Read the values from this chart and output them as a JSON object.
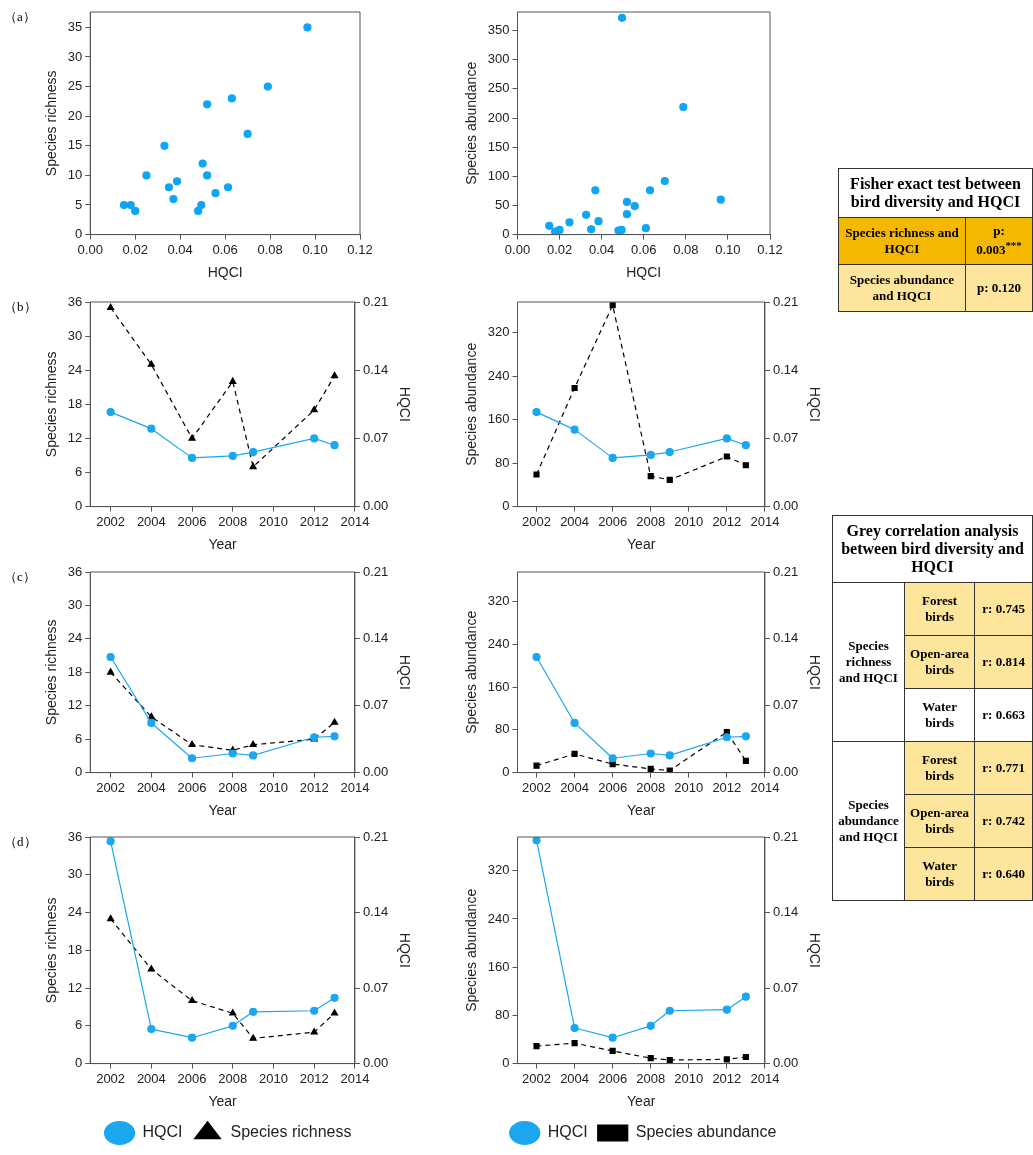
{
  "chart_data": [
    {
      "type": "scatter",
      "xlabel": "HQCI",
      "ylabel": "Species richness",
      "annotations": [
        "（a）"
      ],
      "xlim": [
        0,
        0.12
      ],
      "ylim": [
        0,
        37.6
      ],
      "xticks": [
        {
          "value": 0,
          "label": "0.00"
        },
        {
          "value": 0.02,
          "label": "0.02"
        },
        {
          "value": 0.04,
          "label": "0.04"
        },
        {
          "value": 0.06,
          "label": "0.06"
        },
        {
          "value": 0.08,
          "label": "0.08"
        },
        {
          "value": 0.1,
          "label": "0.10"
        },
        {
          "value": 0.12,
          "label": "0.12"
        }
      ],
      "yticks": [
        0,
        5,
        10,
        15,
        20,
        25,
        30,
        35
      ],
      "marker": "circle",
      "series": [
        {
          "color": "#0ea5f5",
          "x": [
            0.015,
            0.018,
            0.02,
            0.025,
            0.033,
            0.035,
            0.037,
            0.0386,
            0.048,
            0.0494,
            0.05,
            0.052,
            0.052,
            0.0557,
            0.0613,
            0.063,
            0.07,
            0.079,
            0.0966
          ],
          "values": [
            5,
            5,
            4,
            10,
            15,
            8,
            6,
            9,
            4,
            5,
            12,
            22,
            10,
            7,
            8,
            23,
            17,
            25,
            35
          ]
        }
      ]
    },
    {
      "type": "scatter",
      "xlabel": "HQCI",
      "ylabel": "Species abundance",
      "xlim": [
        0,
        0.12
      ],
      "ylim": [
        0,
        382
      ],
      "xticks": [
        {
          "value": 0,
          "label": "0.00"
        },
        {
          "value": 0.02,
          "label": "0.02"
        },
        {
          "value": 0.04,
          "label": "0.04"
        },
        {
          "value": 0.06,
          "label": "0.06"
        },
        {
          "value": 0.08,
          "label": "0.08"
        },
        {
          "value": 0.1,
          "label": "0.10"
        },
        {
          "value": 0.12,
          "label": "0.12"
        }
      ],
      "yticks": [
        0,
        50,
        100,
        150,
        200,
        250,
        300,
        350
      ],
      "marker": "circle",
      "series": [
        {
          "color": "#0ea5f5",
          "x": [
            0.0151,
            0.0179,
            0.02,
            0.0247,
            0.0326,
            0.035,
            0.037,
            0.0385,
            0.048,
            0.0495,
            0.0497,
            0.052,
            0.052,
            0.0557,
            0.061,
            0.063,
            0.07,
            0.0788,
            0.0966
          ],
          "values": [
            15,
            5,
            8,
            21,
            34,
            9,
            76,
            23,
            7,
            8,
            372,
            56,
            35,
            49,
            11,
            76,
            92,
            219,
            60
          ]
        }
      ]
    },
    {
      "type": "other",
      "title": "Fisher exact test between bird diversity and HQCI",
      "annotations": [
        "Species richness and HQCI",
        "p: 0.003$^{***}$",
        "Species abundance and HQCI",
        "p: 0.120"
      ]
    },
    {
      "type": "line",
      "xlabel": "Year",
      "ylabel": "Species richness",
      "y2label": "HQCI",
      "annotations": [
        "（b）"
      ],
      "x": [
        2002,
        2004,
        2006,
        2008,
        2009,
        2012,
        2013
      ],
      "xlim": [
        2001,
        2014
      ],
      "xticks": [
        2002,
        2004,
        2006,
        2008,
        2010,
        2012,
        2014
      ],
      "ylim": [
        0,
        36
      ],
      "yticks": [
        0,
        6,
        12,
        18,
        24,
        30,
        36
      ],
      "y2lim": [
        0,
        0.21
      ],
      "y2ticks": [
        {
          "value": 0,
          "label": "0.00"
        },
        {
          "value": 0.07,
          "label": "0.07"
        },
        {
          "value": 0.14,
          "label": "0.14"
        },
        {
          "value": 0.21,
          "label": "0.21"
        }
      ],
      "series": [
        {
          "axis": "y2",
          "color": "#1aa7f0",
          "marker": "circle",
          "line_style": "solid",
          "values": [
            0.097,
            0.08,
            0.05,
            0.052,
            0.056,
            0.07,
            0.063
          ]
        },
        {
          "axis": "y",
          "color": "#000000",
          "marker": "triangle",
          "line_style": "dashed",
          "values": [
            35,
            25,
            12,
            22,
            7,
            17,
            23
          ]
        }
      ]
    },
    {
      "type": "line",
      "xlabel": "Year",
      "ylabel": "Species abundance",
      "y2label": "HQCI",
      "x": [
        2002,
        2004,
        2006,
        2008,
        2009,
        2012,
        2013
      ],
      "xlim": [
        2001,
        2014
      ],
      "xticks": [
        2002,
        2004,
        2006,
        2008,
        2010,
        2012,
        2014
      ],
      "ylim": [
        0,
        376
      ],
      "yticks": [
        0,
        80,
        160,
        240,
        320
      ],
      "y2lim": [
        0,
        0.21
      ],
      "y2ticks": [
        {
          "value": 0,
          "label": "0.00"
        },
        {
          "value": 0.07,
          "label": "0.07"
        },
        {
          "value": 0.14,
          "label": "0.14"
        },
        {
          "value": 0.21,
          "label": "0.21"
        }
      ],
      "series": [
        {
          "axis": "y2",
          "color": "#1aa7f0",
          "marker": "circle",
          "line_style": "solid",
          "values": [
            0.097,
            0.079,
            0.05,
            0.053,
            0.056,
            0.07,
            0.063
          ]
        },
        {
          "axis": "y",
          "color": "#000000",
          "marker": "square",
          "line_style": "dashed",
          "values": [
            59,
            218,
            370,
            56,
            49,
            92,
            76
          ]
        }
      ]
    },
    {
      "type": "other",
      "title": "Grey correlation analysis between bird diversity and HQCI",
      "annotations": [
        "Species richness and HQCI",
        "Forest birds",
        "r: 0.745",
        "Open-area birds",
        "r: 0.814",
        "Water birds",
        "r: 0.663",
        "Species abundance and HQCI",
        "Forest birds",
        "r: 0.771",
        "Open-area birds",
        "r: 0.742",
        "Water birds",
        "r: 0.640"
      ]
    },
    {
      "type": "line",
      "xlabel": "Year",
      "ylabel": "Species richness",
      "y2label": "HQCI",
      "annotations": [
        "（c）"
      ],
      "x": [
        2002,
        2004,
        2006,
        2008,
        2009,
        2012,
        2013
      ],
      "xlim": [
        2001,
        2014
      ],
      "xticks": [
        2002,
        2004,
        2006,
        2008,
        2010,
        2012,
        2014
      ],
      "ylim": [
        0,
        36
      ],
      "yticks": [
        0,
        6,
        12,
        18,
        24,
        30,
        36
      ],
      "y2lim": [
        0,
        0.21
      ],
      "y2ticks": [
        {
          "value": 0,
          "label": "0.00"
        },
        {
          "value": 0.07,
          "label": "0.07"
        },
        {
          "value": 0.14,
          "label": "0.14"
        },
        {
          "value": 0.21,
          "label": "0.21"
        }
      ],
      "series": [
        {
          "axis": "y2",
          "color": "#1aa7f0",
          "marker": "circle",
          "line_style": "solid",
          "values": [
            0.121,
            0.052,
            0.015,
            0.02,
            0.018,
            0.037,
            0.038
          ]
        },
        {
          "axis": "y",
          "color": "#000000",
          "marker": "triangle",
          "line_style": "dashed",
          "values": [
            18,
            10,
            5,
            4,
            5,
            6,
            9
          ]
        }
      ]
    },
    {
      "type": "line",
      "xlabel": "Year",
      "ylabel": "Species abundance",
      "y2label": "HQCI",
      "x": [
        2002,
        2004,
        2006,
        2008,
        2009,
        2012,
        2013
      ],
      "xlim": [
        2001,
        2014
      ],
      "xticks": [
        2002,
        2004,
        2006,
        2008,
        2010,
        2012,
        2014
      ],
      "ylim": [
        0,
        376
      ],
      "yticks": [
        0,
        80,
        160,
        240,
        320
      ],
      "y2lim": [
        0,
        0.21
      ],
      "y2ticks": [
        {
          "value": 0,
          "label": "0.00"
        },
        {
          "value": 0.07,
          "label": "0.07"
        },
        {
          "value": 0.14,
          "label": "0.14"
        },
        {
          "value": 0.21,
          "label": "0.21"
        }
      ],
      "series": [
        {
          "axis": "y2",
          "color": "#1aa7f0",
          "marker": "circle",
          "line_style": "solid",
          "values": [
            0.121,
            0.052,
            0.015,
            0.02,
            0.018,
            0.037,
            0.038
          ]
        },
        {
          "axis": "y",
          "color": "#000000",
          "marker": "square",
          "line_style": "dashed",
          "values": [
            13,
            35,
            16,
            7,
            4,
            76,
            22
          ]
        }
      ]
    },
    {
      "type": "line",
      "xlabel": "Year",
      "ylabel": "Species richness",
      "y2label": "HQCI",
      "annotations": [
        "（d）"
      ],
      "legend": "bottom",
      "x": [
        2002,
        2004,
        2006,
        2008,
        2009,
        2012,
        2013
      ],
      "xlim": [
        2001,
        2014
      ],
      "xticks": [
        2002,
        2004,
        2006,
        2008,
        2010,
        2012,
        2014
      ],
      "ylim": [
        0,
        36
      ],
      "yticks": [
        0,
        6,
        12,
        18,
        24,
        30,
        36
      ],
      "y2lim": [
        0,
        0.21
      ],
      "y2ticks": [
        {
          "value": 0,
          "label": "0.00"
        },
        {
          "value": 0.07,
          "label": "0.07"
        },
        {
          "value": 0.14,
          "label": "0.14"
        },
        {
          "value": 0.21,
          "label": "0.21"
        }
      ],
      "series": [
        {
          "name": "HQCI",
          "axis": "y2",
          "color": "#1aa7f0",
          "marker": "circle",
          "line_style": "solid",
          "values": [
            0.206,
            0.032,
            0.024,
            0.035,
            0.048,
            0.049,
            0.061
          ]
        },
        {
          "name": "Species richness",
          "axis": "y",
          "color": "#000000",
          "marker": "triangle",
          "line_style": "dashed",
          "values": [
            23,
            15,
            10,
            8,
            4,
            5,
            8
          ]
        }
      ]
    },
    {
      "type": "line",
      "xlabel": "Year",
      "ylabel": "Species abundance",
      "y2label": "HQCI",
      "legend": "bottom",
      "x": [
        2002,
        2004,
        2006,
        2008,
        2009,
        2012,
        2013
      ],
      "xlim": [
        2001,
        2014
      ],
      "xticks": [
        2002,
        2004,
        2006,
        2008,
        2010,
        2012,
        2014
      ],
      "ylim": [
        0,
        376
      ],
      "yticks": [
        0,
        80,
        160,
        240,
        320
      ],
      "y2lim": [
        0,
        0.21
      ],
      "y2ticks": [
        {
          "value": 0,
          "label": "0.00"
        },
        {
          "value": 0.07,
          "label": "0.07"
        },
        {
          "value": 0.14,
          "label": "0.14"
        },
        {
          "value": 0.21,
          "label": "0.21"
        }
      ],
      "series": [
        {
          "name": "HQCI",
          "axis": "y2",
          "color": "#1aa7f0",
          "marker": "circle",
          "line_style": "solid",
          "values": [
            0.207,
            0.033,
            0.024,
            0.035,
            0.049,
            0.05,
            0.062
          ]
        },
        {
          "name": "Species abundance",
          "axis": "y",
          "color": "#000000",
          "marker": "square",
          "line_style": "dashed",
          "values": [
            29,
            34,
            21,
            9,
            6,
            7,
            11
          ]
        }
      ]
    }
  ]
}
